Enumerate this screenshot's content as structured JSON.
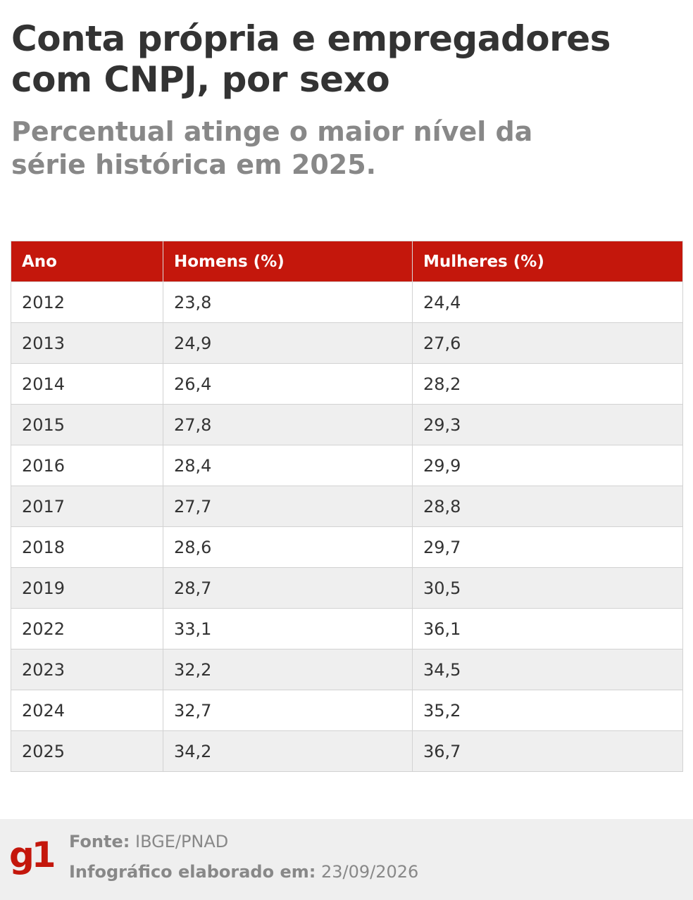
{
  "header": {
    "title": "Conta própria e empregadores com CNPJ, por sexo",
    "subtitle": "Percentual atinge o maior nível da série histórica em 2025."
  },
  "chart_data": {
    "type": "table",
    "title": "Conta própria e empregadores com CNPJ, por sexo",
    "subtitle": "Percentual atinge o maior nível da série histórica em 2025.",
    "columns": [
      "Ano",
      "Homens (%)",
      "Mulheres (%)"
    ],
    "rows": [
      [
        "2012",
        "23,8",
        "24,4"
      ],
      [
        "2013",
        "24,9",
        "27,6"
      ],
      [
        "2014",
        "26,4",
        "28,2"
      ],
      [
        "2015",
        "27,8",
        "29,3"
      ],
      [
        "2016",
        "28,4",
        "29,9"
      ],
      [
        "2017",
        "27,7",
        "28,8"
      ],
      [
        "2018",
        "28,6",
        "29,7"
      ],
      [
        "2019",
        "28,7",
        "30,5"
      ],
      [
        "2022",
        "33,1",
        "36,1"
      ],
      [
        "2023",
        "32,2",
        "34,5"
      ],
      [
        "2024",
        "32,7",
        "35,2"
      ],
      [
        "2025",
        "34,2",
        "36,7"
      ]
    ],
    "series": [
      {
        "name": "Homens (%)",
        "values": [
          23.8,
          24.9,
          26.4,
          27.8,
          28.4,
          27.7,
          28.6,
          28.7,
          33.1,
          32.2,
          32.7,
          34.2
        ]
      },
      {
        "name": "Mulheres (%)",
        "values": [
          24.4,
          27.6,
          28.2,
          29.3,
          29.9,
          28.8,
          29.7,
          30.5,
          36.1,
          34.5,
          35.2,
          36.7
        ]
      }
    ],
    "categories": [
      "2012",
      "2013",
      "2014",
      "2015",
      "2016",
      "2017",
      "2018",
      "2019",
      "2022",
      "2023",
      "2024",
      "2025"
    ]
  },
  "footer": {
    "logo_text": "g1",
    "source_label": "Fonte:",
    "source_value": "IBGE/PNAD",
    "made_label": "Infográfico elaborado em:",
    "made_value": "23/09/2026"
  },
  "colors": {
    "header_bg": "#c4170c",
    "logo": "#c4170c",
    "title": "#333333",
    "subtitle": "#888888",
    "zebra": "#efefef",
    "footer_bg": "#efefef"
  }
}
